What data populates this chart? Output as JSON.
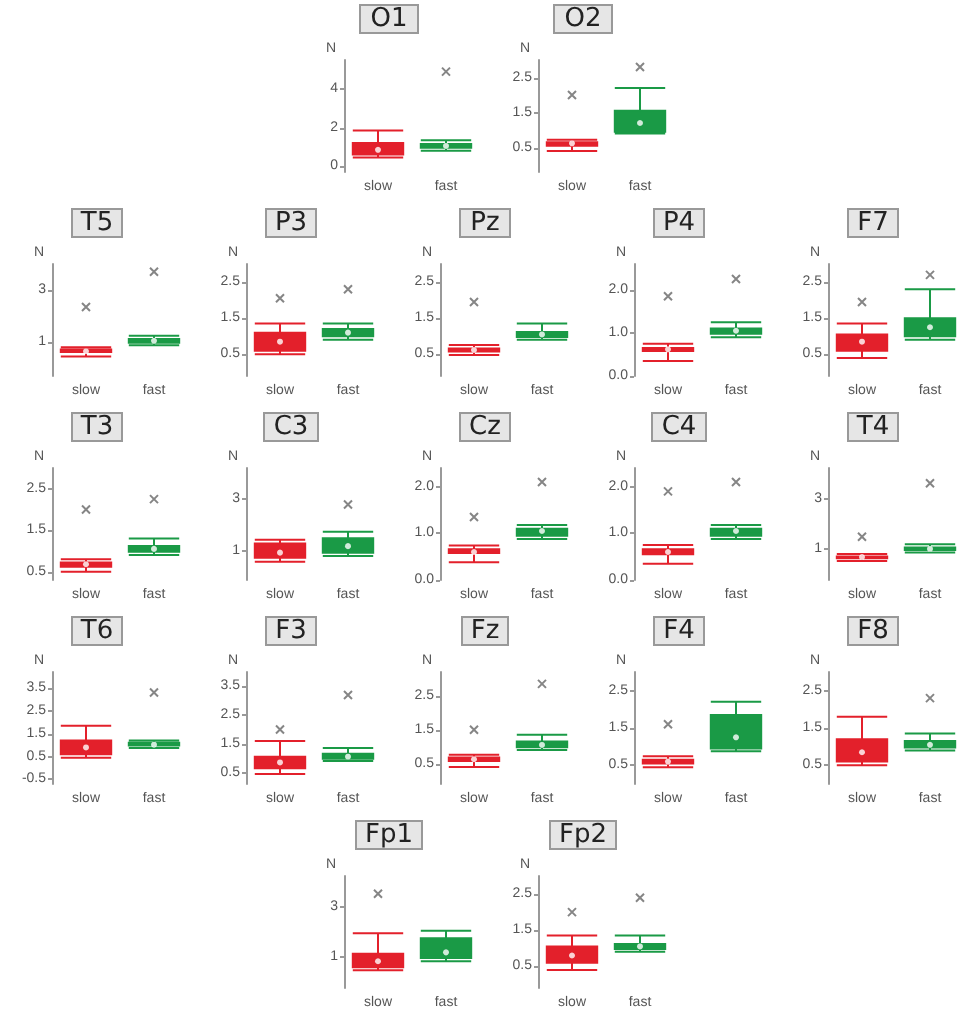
{
  "chart_data": [
    {
      "type": "box",
      "title": "O1",
      "ylabel": "N",
      "categories": [
        "slow",
        "fast"
      ],
      "colors": [
        "#e3202b",
        "#1a9a46"
      ],
      "ylim": [
        -0.3,
        5.5
      ],
      "yticks": [
        0,
        2,
        4
      ],
      "boxes": [
        {
          "low": 0.45,
          "q1": 0.6,
          "median": 0.8,
          "q3": 1.2,
          "high": 1.85,
          "mean": 0.85
        },
        {
          "low": 0.8,
          "q1": 0.95,
          "median": 1.0,
          "q3": 1.15,
          "high": 1.35,
          "mean": 1.05,
          "outliers": [
            4.9
          ]
        }
      ]
    },
    {
      "type": "box",
      "title": "O2",
      "ylabel": "N",
      "categories": [
        "slow",
        "fast"
      ],
      "colors": [
        "#e3202b",
        "#1a9a46"
      ],
      "ylim": [
        -0.2,
        3.0
      ],
      "yticks": [
        0.5,
        1.5,
        2.5
      ],
      "boxes": [
        {
          "low": 0.4,
          "q1": 0.55,
          "median": 0.6,
          "q3": 0.65,
          "high": 0.72,
          "mean": 0.62,
          "outliers": [
            2.0
          ]
        },
        {
          "low": 0.9,
          "q1": 0.95,
          "median": 1.0,
          "q3": 1.55,
          "high": 2.2,
          "mean": 1.2,
          "outliers": [
            2.8
          ]
        }
      ]
    },
    {
      "type": "box",
      "title": "T5",
      "ylabel": "N",
      "categories": [
        "slow",
        "fast"
      ],
      "colors": [
        "#e3202b",
        "#1a9a46"
      ],
      "ylim": [
        -0.3,
        4.0
      ],
      "yticks": [
        1,
        3
      ],
      "boxes": [
        {
          "low": 0.45,
          "q1": 0.62,
          "median": 0.68,
          "q3": 0.72,
          "high": 0.8,
          "mean": 0.65,
          "outliers": [
            2.35
          ]
        },
        {
          "low": 0.88,
          "q1": 0.98,
          "median": 1.0,
          "q3": 1.12,
          "high": 1.25,
          "mean": 1.05,
          "outliers": [
            3.7
          ]
        }
      ]
    },
    {
      "type": "box",
      "title": "P3",
      "ylabel": "N",
      "categories": [
        "slow",
        "fast"
      ],
      "colors": [
        "#e3202b",
        "#1a9a46"
      ],
      "ylim": [
        -0.1,
        3.0
      ],
      "yticks": [
        0.5,
        1.5,
        2.5
      ],
      "boxes": [
        {
          "low": 0.5,
          "q1": 0.6,
          "median": 0.65,
          "q3": 1.1,
          "high": 1.35,
          "mean": 0.85,
          "outliers": [
            2.05
          ]
        },
        {
          "low": 0.9,
          "q1": 1.0,
          "median": 1.05,
          "q3": 1.2,
          "high": 1.35,
          "mean": 1.1,
          "outliers": [
            2.3
          ]
        }
      ]
    },
    {
      "type": "box",
      "title": "Pz",
      "ylabel": "N",
      "categories": [
        "slow",
        "fast"
      ],
      "colors": [
        "#e3202b",
        "#1a9a46"
      ],
      "ylim": [
        -0.1,
        3.0
      ],
      "yticks": [
        0.5,
        1.5,
        2.5
      ],
      "boxes": [
        {
          "low": 0.48,
          "q1": 0.58,
          "median": 0.6,
          "q3": 0.66,
          "high": 0.76,
          "mean": 0.62,
          "outliers": [
            1.95
          ]
        },
        {
          "low": 0.9,
          "q1": 0.98,
          "median": 1.0,
          "q3": 1.12,
          "high": 1.35,
          "mean": 1.05
        }
      ]
    },
    {
      "type": "box",
      "title": "P4",
      "ylabel": "N",
      "categories": [
        "slow",
        "fast"
      ],
      "colors": [
        "#e3202b",
        "#1a9a46"
      ],
      "ylim": [
        0,
        2.6
      ],
      "yticks": [
        {
          "value": 0,
          "label": "0.0"
        },
        {
          "value": 1,
          "label": "1.0"
        },
        {
          "value": 2,
          "label": "2.0"
        }
      ],
      "boxes": [
        {
          "low": 0.35,
          "q1": 0.58,
          "median": 0.6,
          "q3": 0.65,
          "high": 0.75,
          "mean": 0.62,
          "outliers": [
            1.85
          ]
        },
        {
          "low": 0.9,
          "q1": 0.98,
          "median": 1.02,
          "q3": 1.1,
          "high": 1.25,
          "mean": 1.05,
          "outliers": [
            2.25
          ]
        }
      ]
    },
    {
      "type": "box",
      "title": "F7",
      "ylabel": "N",
      "categories": [
        "slow",
        "fast"
      ],
      "colors": [
        "#e3202b",
        "#1a9a46"
      ],
      "ylim": [
        -0.1,
        3.0
      ],
      "yticks": [
        0.5,
        1.5,
        2.5
      ],
      "boxes": [
        {
          "low": 0.4,
          "q1": 0.6,
          "median": 0.65,
          "q3": 1.05,
          "high": 1.35,
          "mean": 0.85,
          "outliers": [
            1.95
          ]
        },
        {
          "low": 0.9,
          "q1": 1.0,
          "median": 1.05,
          "q3": 1.5,
          "high": 2.3,
          "mean": 1.25,
          "outliers": [
            2.7
          ]
        }
      ]
    },
    {
      "type": "box",
      "title": "T3",
      "ylabel": "N",
      "categories": [
        "slow",
        "fast"
      ],
      "colors": [
        "#e3202b",
        "#1a9a46"
      ],
      "ylim": [
        0.3,
        3.0
      ],
      "yticks": [
        0.5,
        1.5,
        2.5
      ],
      "boxes": [
        {
          "low": 0.5,
          "q1": 0.62,
          "median": 0.68,
          "q3": 0.72,
          "high": 0.8,
          "mean": 0.68,
          "outliers": [
            2.0
          ]
        },
        {
          "low": 0.9,
          "q1": 0.98,
          "median": 1.0,
          "q3": 1.12,
          "high": 1.3,
          "mean": 1.05,
          "outliers": [
            2.25
          ]
        }
      ]
    },
    {
      "type": "box",
      "title": "C3",
      "ylabel": "N",
      "categories": [
        "slow",
        "fast"
      ],
      "colors": [
        "#e3202b",
        "#1a9a46"
      ],
      "ylim": [
        -0.1,
        4.2
      ],
      "yticks": [
        1,
        3
      ],
      "boxes": [
        {
          "low": 0.6,
          "q1": 0.75,
          "median": 0.8,
          "q3": 1.3,
          "high": 1.45,
          "mean": 0.95
        },
        {
          "low": 0.82,
          "q1": 0.95,
          "median": 1.0,
          "q3": 1.5,
          "high": 1.75,
          "mean": 1.2,
          "outliers": [
            2.8
          ]
        }
      ]
    },
    {
      "type": "box",
      "title": "Cz",
      "ylabel": "N",
      "categories": [
        "slow",
        "fast"
      ],
      "colors": [
        "#e3202b",
        "#1a9a46"
      ],
      "ylim": [
        0,
        2.4
      ],
      "yticks": [
        {
          "value": 0,
          "label": "0.0"
        },
        {
          "value": 1,
          "label": "1.0"
        },
        {
          "value": 2,
          "label": "2.0"
        }
      ],
      "boxes": [
        {
          "low": 0.38,
          "q1": 0.58,
          "median": 0.62,
          "q3": 0.66,
          "high": 0.74,
          "mean": 0.6,
          "outliers": [
            1.35
          ]
        },
        {
          "low": 0.88,
          "q1": 0.95,
          "median": 1.02,
          "q3": 1.1,
          "high": 1.18,
          "mean": 1.05,
          "outliers": [
            2.1
          ]
        }
      ]
    },
    {
      "type": "box",
      "title": "C4",
      "ylabel": "N",
      "categories": [
        "slow",
        "fast"
      ],
      "colors": [
        "#e3202b",
        "#1a9a46"
      ],
      "ylim": [
        0,
        2.4
      ],
      "yticks": [
        {
          "value": 0,
          "label": "0.0"
        },
        {
          "value": 1,
          "label": "1.0"
        },
        {
          "value": 2,
          "label": "2.0"
        }
      ],
      "boxes": [
        {
          "low": 0.35,
          "q1": 0.55,
          "median": 0.6,
          "q3": 0.66,
          "high": 0.75,
          "mean": 0.6,
          "outliers": [
            1.9
          ]
        },
        {
          "low": 0.88,
          "q1": 0.95,
          "median": 1.0,
          "q3": 1.1,
          "high": 1.18,
          "mean": 1.05,
          "outliers": [
            2.1
          ]
        }
      ]
    },
    {
      "type": "box",
      "title": "T4",
      "ylabel": "N",
      "categories": [
        "slow",
        "fast"
      ],
      "colors": [
        "#e3202b",
        "#1a9a46"
      ],
      "ylim": [
        -0.2,
        4.2
      ],
      "yticks": [
        1,
        3
      ],
      "boxes": [
        {
          "low": 0.55,
          "q1": 0.65,
          "median": 0.7,
          "q3": 0.72,
          "high": 0.82,
          "mean": 0.7,
          "outliers": [
            1.5
          ]
        },
        {
          "low": 0.88,
          "q1": 0.98,
          "median": 1.0,
          "q3": 1.08,
          "high": 1.2,
          "mean": 1.02,
          "outliers": [
            3.6
          ]
        }
      ]
    },
    {
      "type": "box",
      "title": "T6",
      "ylabel": "N",
      "categories": [
        "slow",
        "fast"
      ],
      "colors": [
        "#e3202b",
        "#1a9a46"
      ],
      "ylim": [
        -0.7,
        4.2
      ],
      "yticks": [
        -0.5,
        0.5,
        1.5,
        2.5,
        3.5
      ],
      "boxes": [
        {
          "low": 0.45,
          "q1": 0.6,
          "median": 0.7,
          "q3": 1.2,
          "high": 1.85,
          "mean": 0.9
        },
        {
          "low": 0.88,
          "q1": 0.98,
          "median": 1.0,
          "q3": 1.1,
          "high": 1.2,
          "mean": 1.02,
          "outliers": [
            3.3
          ]
        }
      ]
    },
    {
      "type": "box",
      "title": "F3",
      "ylabel": "N",
      "categories": [
        "slow",
        "fast"
      ],
      "colors": [
        "#e3202b",
        "#1a9a46"
      ],
      "ylim": [
        0.1,
        4.0
      ],
      "yticks": [
        0.5,
        1.5,
        2.5,
        3.5
      ],
      "boxes": [
        {
          "low": 0.45,
          "q1": 0.65,
          "median": 0.72,
          "q3": 1.05,
          "high": 1.6,
          "mean": 0.85,
          "outliers": [
            2.0
          ]
        },
        {
          "low": 0.9,
          "q1": 0.98,
          "median": 1.0,
          "q3": 1.15,
          "high": 1.35,
          "mean": 1.05,
          "outliers": [
            3.2
          ]
        }
      ]
    },
    {
      "type": "box",
      "title": "Fz",
      "ylabel": "N",
      "categories": [
        "slow",
        "fast"
      ],
      "colors": [
        "#e3202b",
        "#1a9a46"
      ],
      "ylim": [
        -0.1,
        3.2
      ],
      "yticks": [
        0.5,
        1.5,
        2.5
      ],
      "boxes": [
        {
          "low": 0.4,
          "q1": 0.58,
          "median": 0.62,
          "q3": 0.68,
          "high": 0.76,
          "mean": 0.63,
          "outliers": [
            1.5
          ]
        },
        {
          "low": 0.9,
          "q1": 0.98,
          "median": 1.05,
          "q3": 1.15,
          "high": 1.35,
          "mean": 1.05,
          "outliers": [
            2.85
          ]
        }
      ]
    },
    {
      "type": "box",
      "title": "F4",
      "ylabel": "N",
      "categories": [
        "slow",
        "fast"
      ],
      "colors": [
        "#e3202b",
        "#1a9a46"
      ],
      "ylim": [
        0,
        3.0
      ],
      "yticks": [
        0.5,
        1.5,
        2.5
      ],
      "boxes": [
        {
          "low": 0.45,
          "q1": 0.55,
          "median": 0.6,
          "q3": 0.65,
          "high": 0.74,
          "mean": 0.6,
          "outliers": [
            1.6
          ]
        },
        {
          "low": 0.88,
          "q1": 0.95,
          "median": 1.0,
          "q3": 1.85,
          "high": 2.2,
          "mean": 1.25
        }
      ]
    },
    {
      "type": "box",
      "title": "F8",
      "ylabel": "N",
      "categories": [
        "slow",
        "fast"
      ],
      "colors": [
        "#e3202b",
        "#1a9a46"
      ],
      "ylim": [
        0,
        3.0
      ],
      "yticks": [
        0.5,
        1.5,
        2.5
      ],
      "boxes": [
        {
          "low": 0.5,
          "q1": 0.6,
          "median": 0.65,
          "q3": 1.2,
          "high": 1.8,
          "mean": 0.85
        },
        {
          "low": 0.9,
          "q1": 0.98,
          "median": 1.02,
          "q3": 1.15,
          "high": 1.35,
          "mean": 1.05,
          "outliers": [
            2.3
          ]
        }
      ]
    },
    {
      "type": "box",
      "title": "Fp1",
      "ylabel": "N",
      "categories": [
        "slow",
        "fast"
      ],
      "colors": [
        "#e3202b",
        "#1a9a46"
      ],
      "ylim": [
        -0.2,
        4.2
      ],
      "yticks": [
        1,
        3
      ],
      "boxes": [
        {
          "low": 0.5,
          "q1": 0.62,
          "median": 0.7,
          "q3": 1.15,
          "high": 1.95,
          "mean": 0.85,
          "outliers": [
            3.5
          ]
        },
        {
          "low": 0.85,
          "q1": 0.98,
          "median": 1.05,
          "q3": 1.75,
          "high": 2.05,
          "mean": 1.2
        }
      ]
    },
    {
      "type": "box",
      "title": "Fp2",
      "ylabel": "N",
      "categories": [
        "slow",
        "fast"
      ],
      "colors": [
        "#e3202b",
        "#1a9a46"
      ],
      "ylim": [
        -0.1,
        3.0
      ],
      "yticks": [
        0.5,
        1.5,
        2.5
      ],
      "boxes": [
        {
          "low": 0.4,
          "q1": 0.6,
          "median": 0.65,
          "q3": 1.05,
          "high": 1.35,
          "mean": 0.8,
          "outliers": [
            2.0
          ]
        },
        {
          "low": 0.9,
          "q1": 0.98,
          "median": 1.02,
          "q3": 1.12,
          "high": 1.35,
          "mean": 1.05,
          "outliers": [
            2.4
          ]
        }
      ]
    }
  ]
}
